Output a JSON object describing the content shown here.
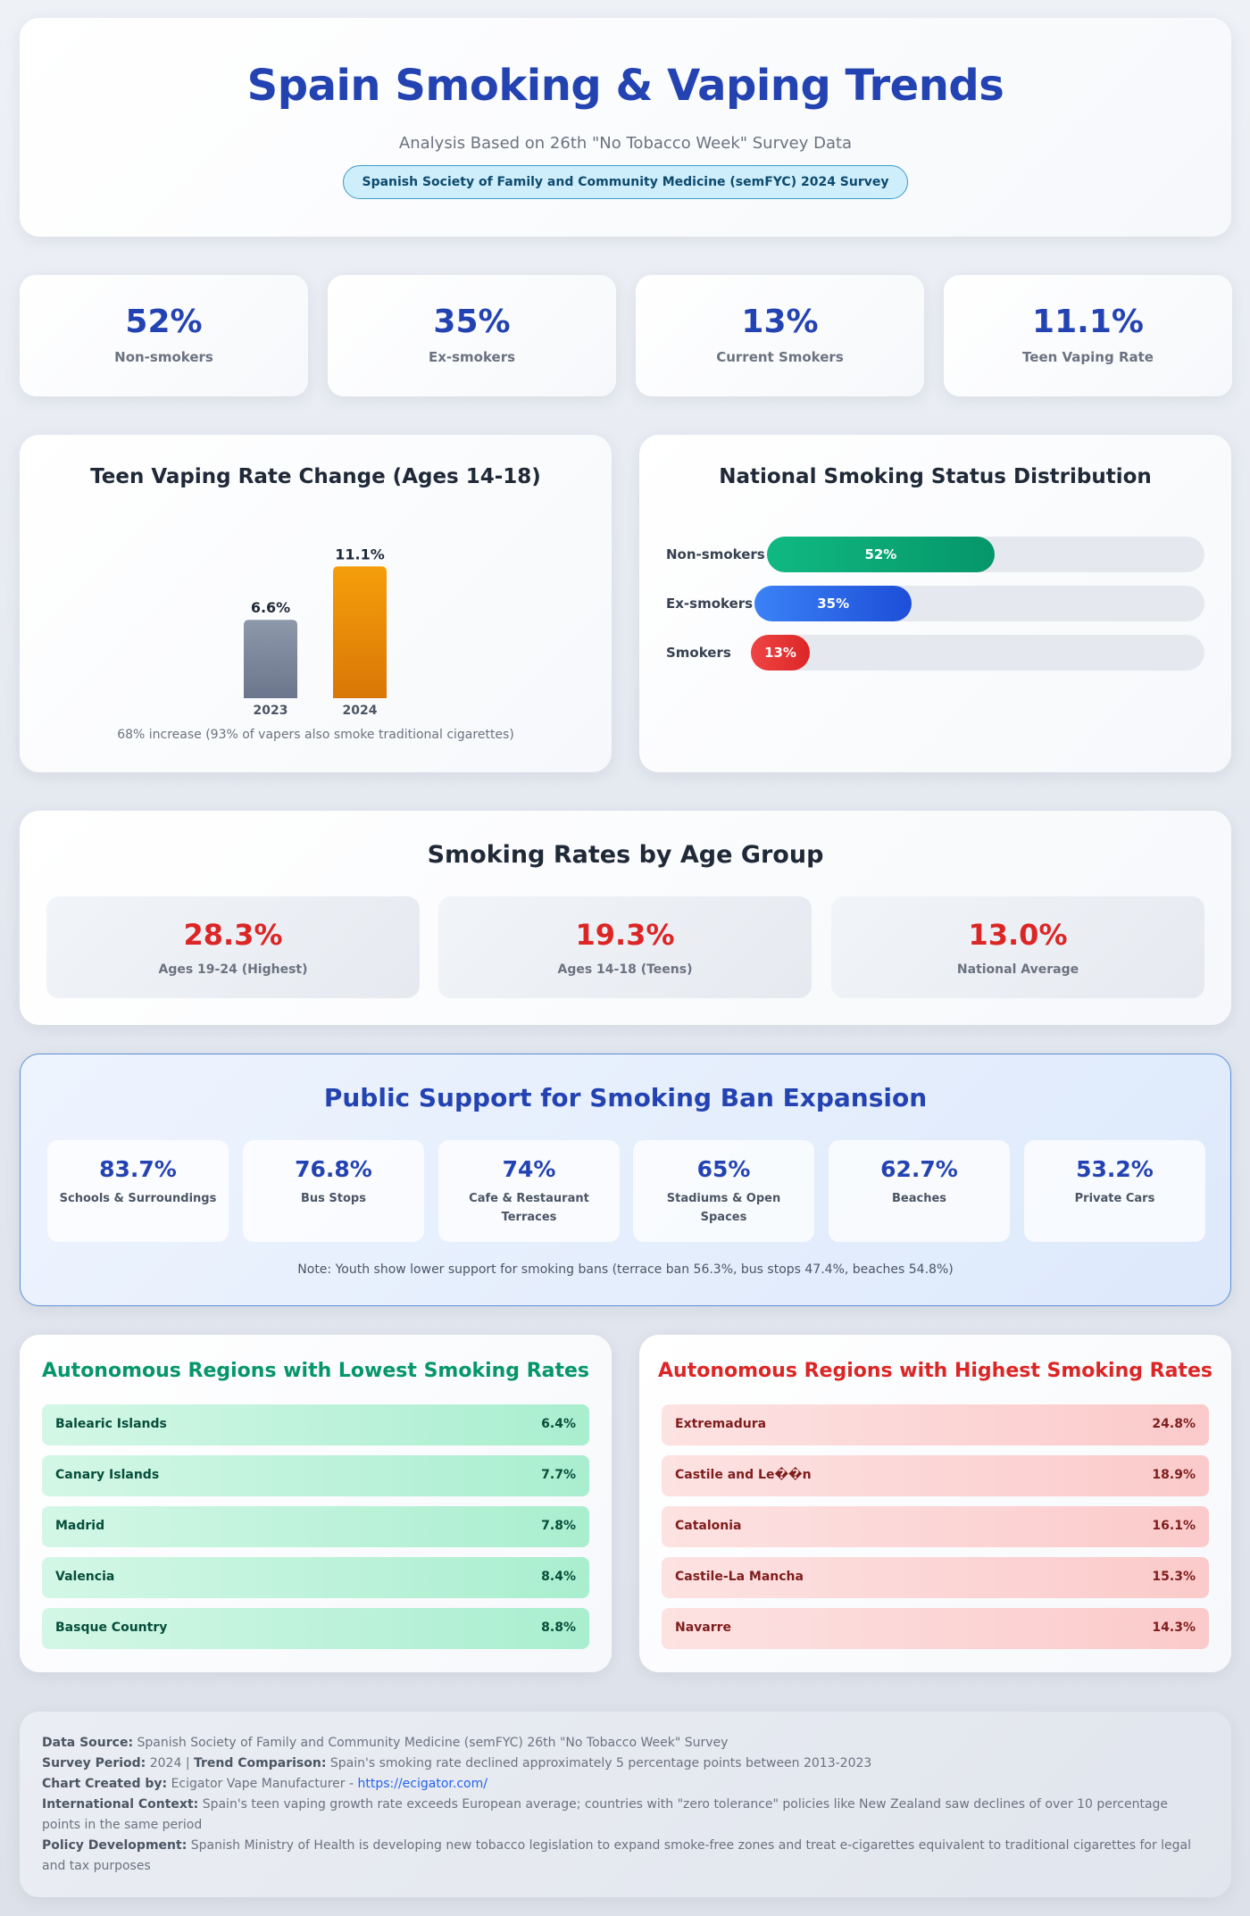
{
  "header": {
    "title": "Spain Smoking & Vaping Trends",
    "subtitle": "Analysis Based on 26th \"No Tobacco Week\" Survey Data",
    "badge": "Spanish Society of Family and Community Medicine (semFYC) 2024 Survey"
  },
  "stats": [
    {
      "value": "52%",
      "label": "Non-smokers"
    },
    {
      "value": "35%",
      "label": "Ex-smokers"
    },
    {
      "value": "13%",
      "label": "Current Smokers"
    },
    {
      "value": "11.1%",
      "label": "Teen Vaping Rate"
    }
  ],
  "teen_card": {
    "title": "Teen Vaping Rate Change (Ages 14-18)",
    "note": "68% increase (93% of vapers also smoke traditional cigarettes)"
  },
  "dist_card": {
    "title": "National Smoking Status Distribution"
  },
  "chart_data": [
    {
      "type": "bar",
      "title": "Teen Vaping Rate Change (Ages 14-18)",
      "categories": [
        "2023",
        "2024"
      ],
      "values": [
        6.6,
        11.1
      ],
      "labels": [
        "6.6%",
        "11.1%"
      ],
      "colors": [
        "#7c879c",
        "#ea860b"
      ]
    },
    {
      "type": "bar",
      "orientation": "horizontal",
      "title": "National Smoking Status Distribution",
      "categories": [
        "Non-smokers",
        "Ex-smokers",
        "Smokers"
      ],
      "values": [
        52,
        35,
        13
      ],
      "labels": [
        "52%",
        "35%",
        "13%"
      ],
      "colors": [
        "#10b981",
        "#3b6fe0",
        "#e5343d"
      ]
    }
  ],
  "age_card": {
    "title": "Smoking Rates by Age Group",
    "items": [
      {
        "value": "28.3%",
        "label": "Ages 19-24 (Highest)"
      },
      {
        "value": "19.3%",
        "label": "Ages 14-18 (Teens)"
      },
      {
        "value": "13.0%",
        "label": "National Average"
      }
    ]
  },
  "support_card": {
    "title": "Public Support for Smoking Ban Expansion",
    "items": [
      {
        "value": "83.7%",
        "label": "Schools & Surroundings"
      },
      {
        "value": "76.8%",
        "label": "Bus Stops"
      },
      {
        "value": "74%",
        "label": "Cafe & Restaurant Terraces"
      },
      {
        "value": "65%",
        "label": "Stadiums & Open Spaces"
      },
      {
        "value": "62.7%",
        "label": "Beaches"
      },
      {
        "value": "53.2%",
        "label": "Private Cars"
      }
    ],
    "note": "Note: Youth show lower support for smoking bans (terrace ban 56.3%, bus stops 47.4%, beaches 54.8%)"
  },
  "low_regions": {
    "title": "Autonomous Regions with Lowest Smoking Rates",
    "items": [
      {
        "name": "Balearic Islands",
        "value": "6.4%"
      },
      {
        "name": "Canary Islands",
        "value": "7.7%"
      },
      {
        "name": "Madrid",
        "value": "7.8%"
      },
      {
        "name": "Valencia",
        "value": "8.4%"
      },
      {
        "name": "Basque Country",
        "value": "8.8%"
      }
    ]
  },
  "high_regions": {
    "title": "Autonomous Regions with Highest Smoking Rates",
    "items": [
      {
        "name": "Extremadura",
        "value": "24.8%"
      },
      {
        "name": "Castile and Le��n",
        "value": "18.9%"
      },
      {
        "name": "Catalonia",
        "value": "16.1%"
      },
      {
        "name": "Castile-La Mancha",
        "value": "15.3%"
      },
      {
        "name": "Navarre",
        "value": "14.3%"
      }
    ]
  },
  "footer": {
    "source_label": "Data Source:",
    "source": "Spanish Society of Family and Community Medicine (semFYC) 26th \"No Tobacco Week\" Survey",
    "period_label": "Survey Period:",
    "period": "2024 |",
    "trend_label": "Trend Comparison:",
    "trend": "Spain's smoking rate declined approximately 5 percentage points between 2013-2023",
    "created_label": "Chart Created by:",
    "created": "Ecigator Vape Manufacturer -",
    "link": "https://ecigator.com/",
    "intl_label": "International Context:",
    "intl": "Spain's teen vaping growth rate exceeds European average; countries with \"zero tolerance\" policies like New Zealand saw declines of over 10 percentage points in the same period",
    "policy_label": "Policy Development:",
    "policy": "Spanish Ministry of Health is developing new tobacco legislation to expand smoke-free zones and treat e-cigarettes equivalent to traditional cigarettes for legal and tax purposes"
  }
}
